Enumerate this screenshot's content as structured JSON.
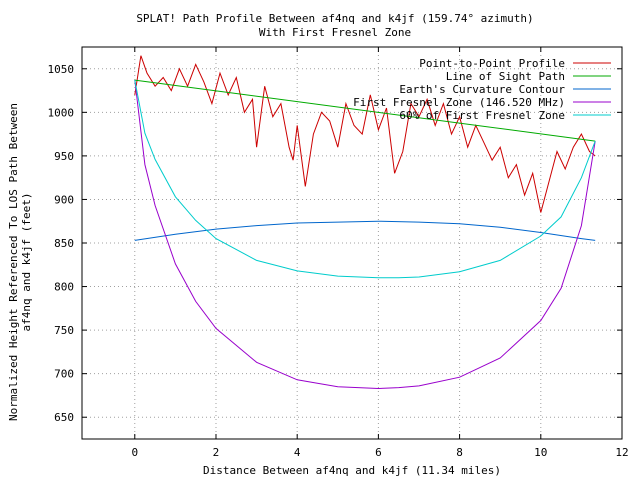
{
  "chart_data": {
    "type": "line",
    "title": "SPLAT! Path Profile Between af4nq and k4jf (159.74° azimuth)",
    "subtitle": "With First Fresnel Zone",
    "xlabel": "Distance Between af4nq and k4jf (11.34 miles)",
    "ylabel_line1": "Normalized Height Referenced To LOS Path Between",
    "ylabel_line2": "af4nq and k4jf (feet)",
    "xlim": [
      -1.3,
      12
    ],
    "ylim": [
      625,
      1075
    ],
    "x_ticks": [
      0,
      2,
      4,
      6,
      8,
      10,
      12
    ],
    "y_ticks": [
      650,
      700,
      750,
      800,
      850,
      900,
      950,
      1000,
      1050
    ],
    "grid": true,
    "legend_position": "top-right",
    "series": [
      {
        "name": "Point-to-Point Profile",
        "color": "#cc0000",
        "x": [
          0,
          0.15,
          0.3,
          0.5,
          0.7,
          0.9,
          1.1,
          1.3,
          1.5,
          1.7,
          1.9,
          2.1,
          2.3,
          2.5,
          2.7,
          2.9,
          3.0,
          3.2,
          3.4,
          3.6,
          3.8,
          3.9,
          4.0,
          4.2,
          4.4,
          4.6,
          4.8,
          5.0,
          5.2,
          5.4,
          5.6,
          5.8,
          6.0,
          6.2,
          6.4,
          6.6,
          6.8,
          7.0,
          7.2,
          7.4,
          7.6,
          7.8,
          8.0,
          8.2,
          8.4,
          8.6,
          8.8,
          9.0,
          9.2,
          9.4,
          9.6,
          9.8,
          10.0,
          10.2,
          10.4,
          10.6,
          10.8,
          11.0,
          11.2,
          11.34
        ],
        "y": [
          1020,
          1065,
          1045,
          1030,
          1040,
          1025,
          1050,
          1030,
          1055,
          1035,
          1010,
          1045,
          1020,
          1040,
          1000,
          1015,
          960,
          1030,
          995,
          1010,
          960,
          945,
          985,
          915,
          975,
          1000,
          990,
          960,
          1010,
          985,
          975,
          1020,
          980,
          1005,
          930,
          955,
          1010,
          995,
          1015,
          985,
          1010,
          975,
          995,
          960,
          985,
          965,
          945,
          960,
          925,
          940,
          905,
          930,
          885,
          920,
          955,
          935,
          960,
          975,
          955,
          950
        ]
      },
      {
        "name": "Line of Sight Path",
        "color": "#00aa00",
        "x": [
          0,
          11.34
        ],
        "y": [
          1037,
          967
        ]
      },
      {
        "name": "Earth's Curvature Contour",
        "color": "#0066cc",
        "x": [
          0,
          1,
          2,
          3,
          4,
          5,
          6,
          7,
          8,
          9,
          10,
          11,
          11.34
        ],
        "y": [
          853,
          860,
          866,
          870,
          873,
          874,
          875,
          874,
          872,
          868,
          862,
          855,
          853
        ]
      },
      {
        "name": "First Fresnel Zone (146.520 MHz)",
        "color": "#9900cc",
        "x": [
          0,
          0.25,
          0.5,
          1,
          1.5,
          2,
          3,
          4,
          5,
          6,
          6.5,
          7,
          8,
          9,
          10,
          10.5,
          11,
          11.34
        ],
        "y": [
          1037,
          940,
          893,
          826,
          783,
          752,
          713,
          693,
          685,
          683,
          684,
          686,
          696,
          718,
          761,
          798,
          870,
          967
        ]
      },
      {
        "name": "60% of First Fresnel Zone",
        "color": "#00cccc",
        "x": [
          0,
          0.25,
          0.5,
          1,
          1.5,
          2,
          3,
          4,
          5,
          6,
          6.5,
          7,
          8,
          9,
          10,
          10.5,
          11,
          11.34
        ],
        "y": [
          1037,
          976,
          946,
          903,
          876,
          855,
          830,
          818,
          812,
          810,
          810,
          811,
          817,
          830,
          858,
          880,
          925,
          967
        ]
      }
    ]
  }
}
